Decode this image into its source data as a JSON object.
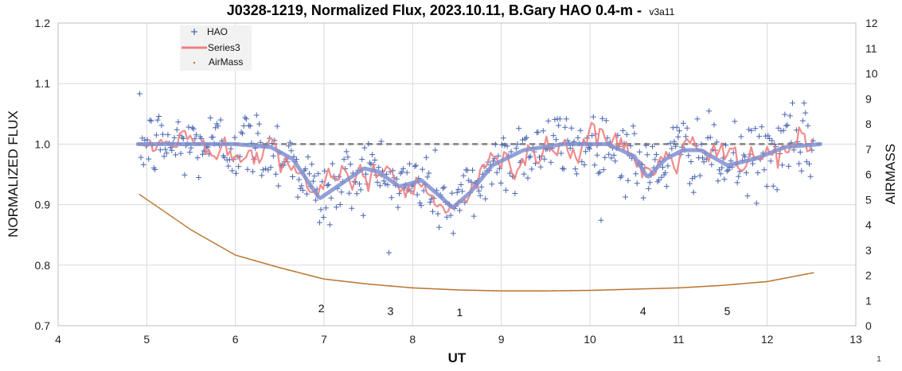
{
  "chart_data": {
    "type": "scatter",
    "title": "J0328-1219, Normalized Flux, 2023.10.11, B.Gary HAO 0.4-m -",
    "subtitle": "v3a11",
    "xlabel": "UT",
    "ylabel": "NORMALIZED FLUX",
    "y2label": "AIRMASS",
    "xlim": [
      4,
      13
    ],
    "ylim": [
      0.7,
      1.2
    ],
    "y2lim": [
      0,
      12
    ],
    "x_ticks": [
      "4",
      "5",
      "6",
      "7",
      "8",
      "9",
      "10",
      "11",
      "12",
      "13"
    ],
    "y_ticks": [
      "0.7",
      "0.8",
      "0.9",
      "1.0",
      "1.1",
      "1.2"
    ],
    "y2_ticks": [
      "0",
      "1",
      "2",
      "3",
      "4",
      "5",
      "6",
      "7",
      "8",
      "9",
      "10",
      "11",
      "12"
    ],
    "grid": true,
    "legend_position": "top-left",
    "legend": [
      {
        "name": "HAO",
        "marker": "plus",
        "color": "#4a66b3"
      },
      {
        "name": "Series3",
        "marker": "line",
        "color": "#f08080"
      },
      {
        "name": "AirMass",
        "marker": "dot",
        "color": "#b8732e"
      }
    ],
    "annotations": [
      {
        "text": "2",
        "x": 6.97,
        "y": 0.722
      },
      {
        "text": "3",
        "x": 7.75,
        "y": 0.718
      },
      {
        "text": "1",
        "x": 8.53,
        "y": 0.716
      },
      {
        "text": "4",
        "x": 10.6,
        "y": 0.718
      },
      {
        "text": "5",
        "x": 11.55,
        "y": 0.718
      }
    ],
    "series": [
      {
        "name": "HAO",
        "axis": "left",
        "style": "plus",
        "color": "#4a66b3",
        "x_range": [
          4.92,
          12.52
        ],
        "noise_sigma": 0.03,
        "center_model": "model"
      },
      {
        "name": "Series3",
        "axis": "left",
        "style": "line",
        "color": "#f08080",
        "x_range": [
          4.92,
          12.52
        ],
        "noise_sigma": 0.012,
        "center_model": "model"
      },
      {
        "name": "model",
        "axis": "left",
        "style": "thick-line",
        "color": "#8090d0",
        "x": [
          4.9,
          5.5,
          6.0,
          6.4,
          6.65,
          6.95,
          7.2,
          7.45,
          7.6,
          7.85,
          8.1,
          8.3,
          8.45,
          8.65,
          8.9,
          9.25,
          9.7,
          10.2,
          10.5,
          10.65,
          10.85,
          11.05,
          11.25,
          11.55,
          11.85,
          12.2,
          12.6
        ],
        "y": [
          1.0,
          1.0,
          1.0,
          0.995,
          0.975,
          0.91,
          0.935,
          0.96,
          0.955,
          0.93,
          0.94,
          0.915,
          0.895,
          0.92,
          0.965,
          0.99,
          1.0,
          1.0,
          0.98,
          0.945,
          0.975,
          0.99,
          0.99,
          0.965,
          0.975,
          0.995,
          1.0
        ]
      },
      {
        "name": "reference",
        "axis": "left",
        "style": "dashed-line",
        "color": "#808080",
        "x": [
          4.9,
          12.6
        ],
        "y": [
          1.0,
          1.0
        ]
      },
      {
        "name": "AirMass",
        "axis": "right",
        "style": "dot",
        "color": "#b8732e",
        "x": [
          4.92,
          5.5,
          6.0,
          6.5,
          7.0,
          7.5,
          8.0,
          8.5,
          9.0,
          9.5,
          10.0,
          10.5,
          11.0,
          11.5,
          12.0,
          12.52
        ],
        "y": [
          5.2,
          3.8,
          2.8,
          2.3,
          1.85,
          1.65,
          1.5,
          1.42,
          1.38,
          1.38,
          1.4,
          1.45,
          1.5,
          1.6,
          1.75,
          2.1
        ]
      }
    ]
  },
  "corner_note": "1"
}
